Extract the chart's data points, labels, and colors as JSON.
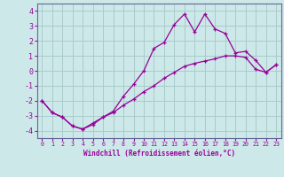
{
  "xlabel": "Windchill (Refroidissement éolien,°C)",
  "background_color": "#cce8e8",
  "grid_color": "#aacccc",
  "line_color": "#990099",
  "spine_color": "#666699",
  "xlim": [
    -0.5,
    23.5
  ],
  "ylim": [
    -4.5,
    4.5
  ],
  "yticks": [
    -4,
    -3,
    -2,
    -1,
    0,
    1,
    2,
    3,
    4
  ],
  "xticks": [
    0,
    1,
    2,
    3,
    4,
    5,
    6,
    7,
    8,
    9,
    10,
    11,
    12,
    13,
    14,
    15,
    16,
    17,
    18,
    19,
    20,
    21,
    22,
    23
  ],
  "line1_x": [
    0,
    1,
    2,
    3,
    4,
    5,
    6,
    7,
    8,
    9,
    10,
    11,
    12,
    13,
    14,
    15,
    16,
    17,
    18,
    19,
    20,
    21,
    22,
    23
  ],
  "line1_y": [
    -2.0,
    -2.8,
    -3.1,
    -3.7,
    -3.9,
    -3.6,
    -3.1,
    -2.7,
    -1.7,
    -0.9,
    0.0,
    1.5,
    1.9,
    3.1,
    3.8,
    2.6,
    3.8,
    2.8,
    2.5,
    1.2,
    1.3,
    0.7,
    -0.1,
    0.4
  ],
  "line2_x": [
    0,
    1,
    2,
    3,
    4,
    5,
    6,
    7,
    8,
    9,
    10,
    11,
    12,
    13,
    14,
    15,
    16,
    17,
    18,
    19,
    20,
    21,
    22,
    23
  ],
  "line2_y": [
    -2.0,
    -2.8,
    -3.1,
    -3.7,
    -3.9,
    -3.5,
    -3.1,
    -2.8,
    -2.3,
    -1.9,
    -1.4,
    -1.0,
    -0.5,
    -0.1,
    0.3,
    0.5,
    0.65,
    0.8,
    1.0,
    1.0,
    0.9,
    0.1,
    -0.1,
    0.4
  ]
}
